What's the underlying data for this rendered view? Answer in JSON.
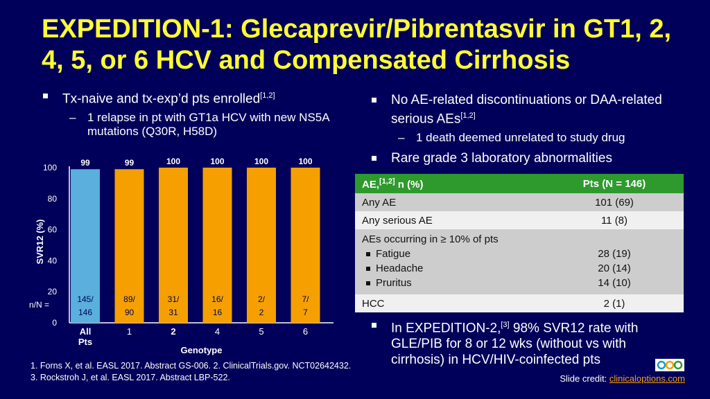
{
  "slide": {
    "title": "EXPEDITION-1: Glecaprevir/Pibrentasvir in GT1, 2, 4, 5, or 6 HCV and Compensated Cirrhosis",
    "left_bullet": {
      "text": "Tx-naive and tx-exp’d pts enrolled",
      "sup": "[1,2]"
    },
    "left_sub": "1 relapse in pt with GT1a HCV with new NS5A mutations (Q30R, H58D)",
    "right_bullet1": {
      "text": "No AE-related discontinuations or DAA-related serious AEs",
      "sup": "[1,2]"
    },
    "right_sub": "1 death deemed unrelated to study drug",
    "right_bullet2": "Rare grade 3 laboratory abnormalities",
    "right_bullet3": {
      "pre": "In EXPEDITION-2,",
      "sup": "[3]",
      "post": " 98% SVR12 rate with GLE/PIB for 8 or 12 wks (without vs with cirrhosis) in HCV/HIV-coinfected pts"
    }
  },
  "table": {
    "header": {
      "label_pre": "AE,",
      "label_sup": "[1,2]",
      "label_post": " n (%)",
      "value": "Pts (N = 146)"
    },
    "any_ae": {
      "label": "Any AE",
      "value": "101 (69)"
    },
    "any_serious": {
      "label": "Any serious AE",
      "value": "11 (8)"
    },
    "common": {
      "label": "AEs occurring in ≥ 10% of pts",
      "items": [
        {
          "label": "Fatigue",
          "value": "28 (19)"
        },
        {
          "label": "Headache",
          "value": "20 (14)"
        },
        {
          "label": "Pruritus",
          "value": "14 (10)"
        }
      ]
    },
    "hcc": {
      "label": "HCC",
      "value": "2 (1)"
    }
  },
  "chart_data": {
    "type": "bar",
    "categories": [
      "All\nPts",
      "1",
      "2",
      "4",
      "5",
      "6"
    ],
    "values": [
      99,
      99,
      100,
      100,
      100,
      100
    ],
    "value_labels": [
      "99",
      "99",
      "100",
      "100",
      "100",
      "100"
    ],
    "n_over_N": [
      [
        "145/",
        "146"
      ],
      [
        "89/",
        "90"
      ],
      [
        "31/",
        "31"
      ],
      [
        "16/",
        "16"
      ],
      [
        "2/",
        "2"
      ],
      [
        "7/",
        "7"
      ]
    ],
    "n_label": "n/N =",
    "bold_categories": [
      0,
      2
    ],
    "colors": [
      "#5aafdc",
      "#f5a000",
      "#f5a000",
      "#f5a000",
      "#f5a000",
      "#f5a000"
    ],
    "ylabel": "SVR12 (%)",
    "xlabel": "Genotype",
    "ylim": [
      0,
      100
    ],
    "yticks": [
      0,
      20,
      40,
      60,
      80,
      100
    ]
  },
  "references": [
    "1. Forns X, et al. EASL 2017. Abstract GS-006. 2. ClinicalTrials.gov. NCT02642432.",
    "3. Rockstroh J, et al. EASL 2017. Abstract LBP-522."
  ],
  "credit": {
    "label": "Slide credit: ",
    "link": "clinicaloptions.com"
  },
  "colors": {
    "background": "#00005a",
    "title": "#ffff33",
    "table_header": "#2e9a2e",
    "link": "#f5a000"
  }
}
